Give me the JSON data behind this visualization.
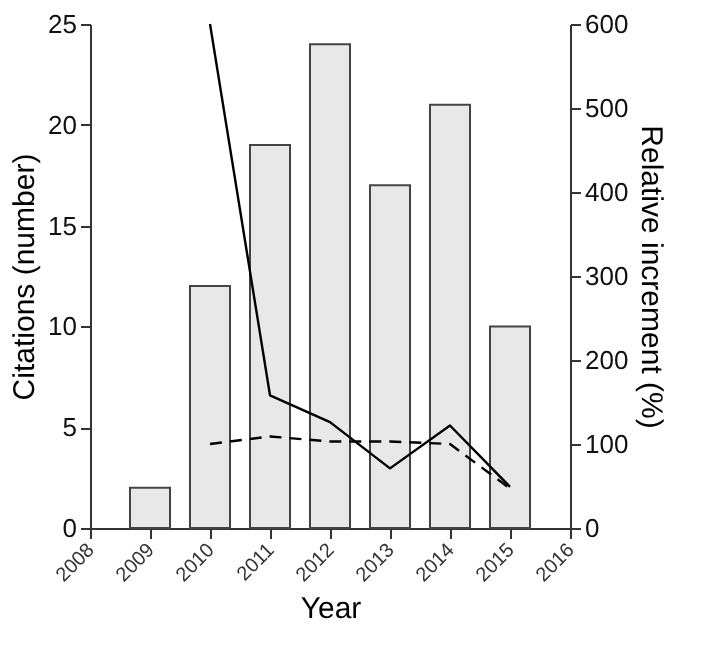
{
  "chart_data": {
    "type": "bar",
    "xlabel": "Year",
    "ylabel": "Citations (number)",
    "y2label": "Relative increment (%)",
    "xlim": [
      2008,
      2016
    ],
    "xticks": [
      2008,
      2009,
      2010,
      2011,
      2012,
      2013,
      2014,
      2015,
      2016
    ],
    "ylim": [
      0,
      25
    ],
    "yticks": [
      0,
      5,
      10,
      15,
      20,
      25
    ],
    "y2lim": [
      0,
      600
    ],
    "y2ticks": [
      0,
      100,
      200,
      300,
      400,
      500,
      600
    ],
    "grid": false,
    "series": [
      {
        "color": "#e8e8e8",
        "x": [
          2009,
          2010,
          2011,
          2012,
          2013,
          2014,
          2015
        ],
        "values": [
          2,
          12,
          19,
          24,
          17,
          21,
          10
        ]
      },
      {
        "type": "line",
        "axis": "y2",
        "color": "#000000",
        "line_style": "solid",
        "x": [
          2010,
          2011,
          2012,
          2013,
          2014,
          2015
        ],
        "values": [
          600,
          158,
          126,
          71,
          122,
          49
        ]
      },
      {
        "type": "line",
        "axis": "y2",
        "color": "#000000",
        "line_style": "dashed",
        "x": [
          2010,
          2011,
          2012,
          2013,
          2014,
          2015
        ],
        "values": [
          100,
          109,
          103,
          103,
          100,
          47
        ]
      }
    ]
  }
}
